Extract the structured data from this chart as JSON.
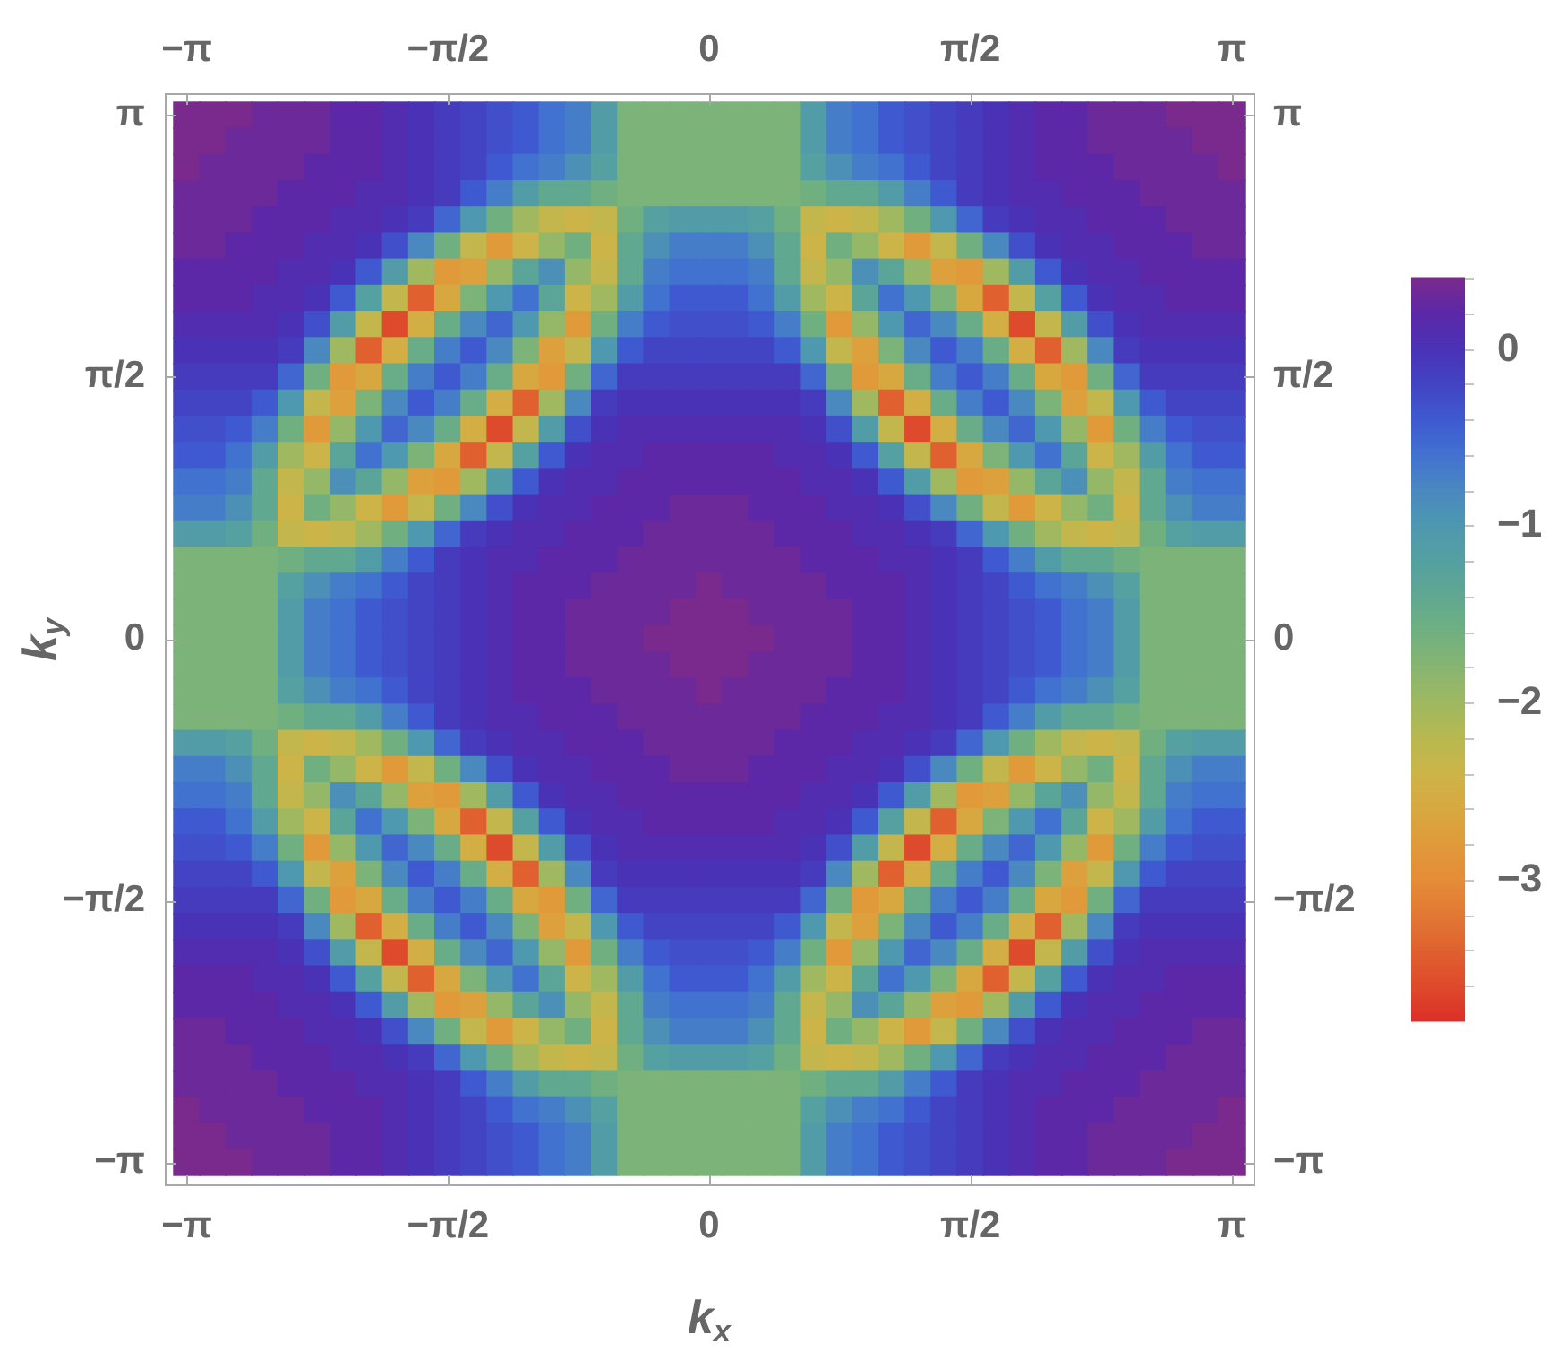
{
  "chart_data": {
    "type": "heatmap",
    "xlabel": "k$_{x}$",
    "ylabel": "k$_{y}$",
    "categories": [
      "−π",
      null,
      null,
      null,
      null,
      null,
      null,
      null,
      null,
      null,
      "−π/2",
      null,
      null,
      null,
      null,
      null,
      null,
      null,
      null,
      null,
      "0",
      null,
      null,
      null,
      null,
      null,
      null,
      null,
      null,
      null,
      "π/2",
      null,
      null,
      null,
      null,
      null,
      null,
      null,
      null,
      null,
      "π"
    ],
    "y2_categories": [
      "π",
      null,
      null,
      null,
      null,
      null,
      null,
      null,
      null,
      null,
      "π/2",
      null,
      null,
      null,
      null,
      null,
      null,
      null,
      null,
      null,
      "0",
      null,
      null,
      null,
      null,
      null,
      null,
      null,
      null,
      null,
      "−π/2",
      null,
      null,
      null,
      null,
      null,
      null,
      null,
      null,
      null,
      "−π"
    ],
    "y_categories": [
      "π",
      null,
      null,
      null,
      null,
      null,
      null,
      null,
      null,
      null,
      "π/2",
      null,
      null,
      null,
      null,
      null,
      null,
      null,
      null,
      null,
      "0",
      null,
      null,
      null,
      null,
      null,
      null,
      null,
      null,
      null,
      "−π/2",
      null,
      null,
      null,
      null,
      null,
      null,
      null,
      null,
      null,
      "−π"
    ],
    "clim": [
      -3.8,
      0.4
    ],
    "cticks": [
      {
        "value": -3.6,
        "label": null
      },
      {
        "value": -3.4,
        "label": null
      },
      {
        "value": -3.2,
        "label": null
      },
      {
        "value": -3,
        "label": "−3"
      },
      {
        "value": -2.8,
        "label": null
      },
      {
        "value": -2.6,
        "label": null
      },
      {
        "value": -2.4,
        "label": null
      },
      {
        "value": -2.2,
        "label": null
      },
      {
        "value": -2,
        "label": "−2"
      },
      {
        "value": -1.8,
        "label": null
      },
      {
        "value": -1.6,
        "label": null
      },
      {
        "value": -1.4,
        "label": null
      },
      {
        "value": -1.2,
        "label": null
      },
      {
        "value": -1,
        "label": "−1"
      },
      {
        "value": -0.8,
        "label": null
      },
      {
        "value": -0.6,
        "label": null
      },
      {
        "value": -0.4,
        "label": null
      },
      {
        "value": -0.2,
        "label": null
      },
      0,
      {
        "value": 0.2,
        "label": null
      },
      {
        "value": 0.4,
        "label": null
      }
    ],
    "colors": [
      "#dc2e28",
      "#de4a2c",
      "#e06030",
      "#e27834",
      "#e58c38",
      "#e09a3a",
      "#d8a840",
      "#ccb448",
      "#b8b850",
      "#a0b860",
      "#88b570",
      "#70b080",
      "#60a890",
      "#55a0a0",
      "#4e98b0",
      "#4a88c0",
      "#4272d0",
      "#3f5ad0",
      "#4244c4",
      "#4a32b6",
      "#5c28a8",
      "#7a2a8c"
    ],
    "cells": [
      [
        0.4,
        0.4,
        0.4,
        0.3,
        0.3,
        0.3,
        0.2,
        0.2,
        0.1,
        0,
        -0.1,
        -0.2,
        -0.3,
        -0.4,
        -0.6,
        -0.7,
        -1.1,
        -1.7,
        -1.7,
        -1.7,
        -1.7,
        -1.7,
        -1.7,
        -1.7,
        -1.1,
        -0.7,
        -0.6,
        -0.4,
        -0.3,
        -0.2,
        -0.1,
        0,
        0.1,
        0.2,
        0.2,
        0.3,
        0.3,
        0.3,
        0.4,
        0.4,
        0.4
      ],
      [
        0.4,
        0.4,
        0.3,
        0.3,
        0.3,
        0.3,
        0.2,
        0.2,
        0.1,
        0,
        -0.1,
        -0.2,
        -0.3,
        -0.4,
        -0.6,
        -0.7,
        -1.1,
        -1.7,
        -1.7,
        -1.7,
        -1.7,
        -1.7,
        -1.7,
        -1.7,
        -1.1,
        -0.7,
        -0.6,
        -0.4,
        -0.3,
        -0.2,
        -0.1,
        0,
        0.1,
        0.2,
        0.2,
        0.3,
        0.3,
        0.3,
        0.3,
        0.4,
        0.4
      ],
      [
        0.4,
        0.3,
        0.3,
        0.3,
        0.3,
        0.2,
        0.2,
        0.2,
        0.1,
        0,
        -0.1,
        -0.2,
        -0.4,
        -0.6,
        -0.7,
        -0.9,
        -1.2,
        -1.7,
        -1.7,
        -1.7,
        -1.7,
        -1.7,
        -1.7,
        -1.7,
        -1.2,
        -0.9,
        -0.7,
        -0.6,
        -0.4,
        -0.2,
        -0.1,
        0,
        0.1,
        0.2,
        0.2,
        0.2,
        0.3,
        0.3,
        0.3,
        0.3,
        0.4
      ],
      [
        0.3,
        0.3,
        0.3,
        0.3,
        0.2,
        0.2,
        0.2,
        0.1,
        0.1,
        0,
        -0.1,
        -0.4,
        -0.7,
        -1.1,
        -1.4,
        -1.4,
        -1.6,
        -1.7,
        -1.7,
        -1.7,
        -1.7,
        -1.7,
        -1.7,
        -1.7,
        -1.6,
        -1.4,
        -1.4,
        -1.1,
        -0.7,
        -0.4,
        -0.1,
        0,
        0.1,
        0.1,
        0.2,
        0.2,
        0.2,
        0.3,
        0.3,
        0.3,
        0.3
      ],
      [
        0.3,
        0.3,
        0.3,
        0.2,
        0.2,
        0.2,
        0.1,
        0.1,
        0,
        -0.1,
        -0.5,
        -1,
        -1.6,
        -2,
        -2.3,
        -2.4,
        -2.3,
        -1.6,
        -1.2,
        -1.1,
        -1.1,
        -1.1,
        -1.2,
        -1.6,
        -2.3,
        -2.4,
        -2.3,
        -2,
        -1.6,
        -1,
        -0.5,
        -0.1,
        0,
        0.1,
        0.1,
        0.2,
        0.2,
        0.2,
        0.3,
        0.3,
        0.3
      ],
      [
        0.3,
        0.3,
        0.2,
        0.2,
        0.2,
        0.1,
        0.1,
        0,
        -0.3,
        -0.8,
        -1.6,
        -2.3,
        -2.8,
        -2.4,
        -1.9,
        -1.6,
        -2.4,
        -1.4,
        -0.9,
        -0.7,
        -0.7,
        -0.7,
        -0.9,
        -1.4,
        -2.4,
        -1.6,
        -1.9,
        -2.4,
        -2.8,
        -2.3,
        -1.6,
        -0.8,
        -0.3,
        0,
        0.1,
        0.1,
        0.2,
        0.2,
        0.2,
        0.3,
        0.3
      ],
      [
        0.2,
        0.2,
        0.2,
        0.2,
        0.1,
        0.1,
        0,
        -0.4,
        -1.1,
        -2,
        -2.8,
        -2.7,
        -1.9,
        -1.3,
        -0.9,
        -1.9,
        -2.3,
        -1.4,
        -0.7,
        -0.6,
        -0.6,
        -0.6,
        -0.7,
        -1.4,
        -2.3,
        -1.9,
        -0.9,
        -1.3,
        -1.9,
        -2.7,
        -2.8,
        -2,
        -1.1,
        -0.4,
        0,
        0.1,
        0.1,
        0.2,
        0.2,
        0.2,
        0.2
      ],
      [
        0.2,
        0.2,
        0.2,
        0.1,
        0.1,
        0,
        -0.4,
        -1.2,
        -2.3,
        -3.4,
        -2.6,
        -1.7,
        -1,
        -0.6,
        -1.3,
        -2.4,
        -2,
        -1.1,
        -0.6,
        -0.4,
        -0.4,
        -0.4,
        -0.6,
        -1.1,
        -2,
        -2.4,
        -1.3,
        -0.6,
        -1,
        -1.7,
        -2.6,
        -3.4,
        -2.3,
        -1.2,
        -0.4,
        0,
        0.1,
        0.1,
        0.2,
        0.2,
        0.2
      ],
      [
        0.1,
        0.1,
        0.1,
        0.1,
        0,
        -0.3,
        -1.1,
        -2.3,
        -3.6,
        -2.5,
        -1.5,
        -0.8,
        -0.5,
        -1,
        -1.9,
        -2.8,
        -1.6,
        -0.7,
        -0.4,
        -0.3,
        -0.3,
        -0.3,
        -0.4,
        -0.7,
        -1.6,
        -2.8,
        -1.9,
        -1,
        -0.5,
        -0.8,
        -1.5,
        -2.5,
        -3.6,
        -2.3,
        -1.1,
        -0.3,
        0,
        0.1,
        0.1,
        0.1,
        0.1
      ],
      [
        0,
        0,
        0,
        0,
        -0.1,
        -0.8,
        -2,
        -3.4,
        -2.5,
        -1.5,
        -0.7,
        -0.4,
        -0.8,
        -1.7,
        -2.7,
        -2.3,
        -1,
        -0.4,
        -0.2,
        -0.2,
        -0.2,
        -0.2,
        -0.2,
        -0.4,
        -1,
        -2.3,
        -2.7,
        -1.7,
        -0.8,
        -0.4,
        -0.7,
        -1.5,
        -2.5,
        -3.4,
        -2,
        -0.8,
        -0.1,
        0,
        0,
        0,
        0
      ],
      [
        -0.1,
        -0.1,
        -0.1,
        -0.1,
        -0.5,
        -1.6,
        -2.8,
        -2.6,
        -1.5,
        -0.7,
        -0.4,
        -0.7,
        -1.5,
        -2.6,
        -2.8,
        -1.6,
        -0.5,
        -0.1,
        -0.1,
        -0.1,
        -0.1,
        -0.1,
        -0.1,
        -0.1,
        -0.5,
        -1.6,
        -2.8,
        -2.6,
        -1.5,
        -0.7,
        -0.4,
        -0.7,
        -1.5,
        -2.6,
        -2.8,
        -1.6,
        -0.5,
        -0.1,
        -0.1,
        -0.1,
        -0.1
      ],
      [
        -0.2,
        -0.2,
        -0.2,
        -0.4,
        -1,
        -2.3,
        -2.7,
        -1.7,
        -0.8,
        -0.4,
        -0.7,
        -1.5,
        -2.5,
        -3.4,
        -2,
        -0.8,
        -0.1,
        0,
        0,
        0,
        0,
        0,
        0,
        0,
        -0.1,
        -0.8,
        -2,
        -3.4,
        -2.5,
        -1.5,
        -0.7,
        -0.4,
        -0.8,
        -1.7,
        -2.7,
        -2.3,
        -1,
        -0.4,
        -0.2,
        -0.2,
        -0.2
      ],
      [
        -0.3,
        -0.3,
        -0.4,
        -0.7,
        -1.6,
        -2.8,
        -1.9,
        -1,
        -0.5,
        -0.8,
        -1.5,
        -2.5,
        -3.6,
        -2.3,
        -1.1,
        -0.3,
        0,
        0.1,
        0.1,
        0.1,
        0.1,
        0.1,
        0.1,
        0.1,
        0,
        -0.3,
        -1.1,
        -2.3,
        -3.6,
        -2.5,
        -1.5,
        -0.8,
        -0.5,
        -1,
        -1.9,
        -2.8,
        -1.6,
        -0.7,
        -0.4,
        -0.3,
        -0.3
      ],
      [
        -0.4,
        -0.4,
        -0.6,
        -1.1,
        -2,
        -2.4,
        -1.3,
        -0.6,
        -1,
        -1.7,
        -2.6,
        -3.4,
        -2.3,
        -1.2,
        -0.4,
        0,
        0.1,
        0.1,
        0.2,
        0.2,
        0.2,
        0.2,
        0.2,
        0.1,
        0.1,
        0,
        -0.4,
        -1.2,
        -2.3,
        -3.4,
        -2.6,
        -1.7,
        -1,
        -0.6,
        -1.3,
        -2.4,
        -2,
        -1.1,
        -0.6,
        -0.4,
        -0.4
      ],
      [
        -0.6,
        -0.6,
        -0.7,
        -1.4,
        -2.3,
        -1.9,
        -0.9,
        -1.3,
        -1.9,
        -2.7,
        -2.8,
        -2,
        -1.1,
        -0.4,
        0,
        0.1,
        0.1,
        0.2,
        0.2,
        0.2,
        0.2,
        0.2,
        0.2,
        0.2,
        0.1,
        0.1,
        0,
        -0.4,
        -1.1,
        -2,
        -2.8,
        -2.7,
        -1.9,
        -1.3,
        -0.9,
        -1.9,
        -2.3,
        -1.4,
        -0.7,
        -0.6,
        -0.6
      ],
      [
        -0.7,
        -0.7,
        -0.9,
        -1.4,
        -2.4,
        -1.6,
        -1.9,
        -2.4,
        -2.8,
        -2.3,
        -1.6,
        -0.8,
        -0.3,
        0,
        0.1,
        0.1,
        0.2,
        0.2,
        0.2,
        0.3,
        0.3,
        0.3,
        0.2,
        0.2,
        0.2,
        0.1,
        0.1,
        0,
        -0.3,
        -0.8,
        -1.6,
        -2.3,
        -2.8,
        -2.4,
        -1.9,
        -1.6,
        -2.4,
        -1.4,
        -0.9,
        -0.7,
        -0.7
      ],
      [
        -1.1,
        -1.1,
        -1.2,
        -1.6,
        -2.3,
        -2.4,
        -2.3,
        -2,
        -1.6,
        -1,
        -0.5,
        -0.1,
        0,
        0.1,
        0.1,
        0.2,
        0.2,
        0.2,
        0.3,
        0.3,
        0.3,
        0.3,
        0.3,
        0.2,
        0.2,
        0.2,
        0.1,
        0.1,
        0,
        -0.1,
        -0.5,
        -1,
        -1.6,
        -2,
        -2.3,
        -2.4,
        -2.3,
        -1.6,
        -1.2,
        -1.1,
        -1.1
      ],
      [
        -1.7,
        -1.7,
        -1.7,
        -1.7,
        -1.6,
        -1.4,
        -1.4,
        -1.1,
        -0.7,
        -0.4,
        -0.1,
        0,
        0.1,
        0.1,
        0.2,
        0.2,
        0.2,
        0.3,
        0.3,
        0.3,
        0.3,
        0.3,
        0.3,
        0.3,
        0.2,
        0.2,
        0.2,
        0.1,
        0.1,
        0,
        -0.1,
        -0.4,
        -0.7,
        -1.1,
        -1.4,
        -1.4,
        -1.6,
        -1.7,
        -1.7,
        -1.7,
        -1.7
      ],
      [
        -1.7,
        -1.7,
        -1.7,
        -1.7,
        -1.2,
        -0.9,
        -0.7,
        -0.6,
        -0.4,
        -0.2,
        -0.1,
        0,
        0.1,
        0.2,
        0.2,
        0.2,
        0.3,
        0.3,
        0.3,
        0.3,
        0.4,
        0.3,
        0.3,
        0.3,
        0.3,
        0.2,
        0.2,
        0.2,
        0.1,
        0,
        -0.1,
        -0.2,
        -0.4,
        -0.6,
        -0.7,
        -0.9,
        -1.2,
        -1.7,
        -1.7,
        -1.7,
        -1.7
      ],
      [
        -1.7,
        -1.7,
        -1.7,
        -1.7,
        -1.1,
        -0.7,
        -0.6,
        -0.4,
        -0.3,
        -0.2,
        -0.1,
        0,
        0.1,
        0.2,
        0.2,
        0.3,
        0.3,
        0.3,
        0.3,
        0.4,
        0.4,
        0.4,
        0.3,
        0.3,
        0.3,
        0.3,
        0.2,
        0.2,
        0.1,
        0,
        -0.1,
        -0.2,
        -0.3,
        -0.4,
        -0.6,
        -0.7,
        -1.1,
        -1.7,
        -1.7,
        -1.7,
        -1.7
      ],
      [
        -1.7,
        -1.7,
        -1.7,
        -1.7,
        -1.1,
        -0.7,
        -0.6,
        -0.4,
        -0.3,
        -0.2,
        -0.1,
        0,
        0.1,
        0.2,
        0.2,
        0.3,
        0.3,
        0.3,
        0.4,
        0.4,
        0.4,
        0.4,
        0.4,
        0.3,
        0.3,
        0.3,
        0.2,
        0.2,
        0.1,
        0,
        -0.1,
        -0.2,
        -0.3,
        -0.4,
        -0.6,
        -0.7,
        -1.1,
        -1.7,
        -1.7,
        -1.7,
        -1.7
      ],
      [
        -1.7,
        -1.7,
        -1.7,
        -1.7,
        -1.1,
        -0.7,
        -0.6,
        -0.4,
        -0.3,
        -0.2,
        -0.1,
        0,
        0.1,
        0.2,
        0.2,
        0.3,
        0.3,
        0.3,
        0.3,
        0.4,
        0.4,
        0.4,
        0.3,
        0.3,
        0.3,
        0.3,
        0.2,
        0.2,
        0.1,
        0,
        -0.1,
        -0.2,
        -0.3,
        -0.4,
        -0.6,
        -0.7,
        -1.1,
        -1.7,
        -1.7,
        -1.7,
        -1.7
      ],
      [
        -1.7,
        -1.7,
        -1.7,
        -1.7,
        -1.2,
        -0.9,
        -0.7,
        -0.6,
        -0.4,
        -0.2,
        -0.1,
        0,
        0.1,
        0.2,
        0.2,
        0.2,
        0.3,
        0.3,
        0.3,
        0.3,
        0.4,
        0.3,
        0.3,
        0.3,
        0.3,
        0.2,
        0.2,
        0.2,
        0.1,
        0,
        -0.1,
        -0.2,
        -0.4,
        -0.6,
        -0.7,
        -0.9,
        -1.2,
        -1.7,
        -1.7,
        -1.7,
        -1.7
      ],
      [
        -1.7,
        -1.7,
        -1.7,
        -1.7,
        -1.6,
        -1.4,
        -1.4,
        -1.1,
        -0.7,
        -0.4,
        -0.1,
        0,
        0.1,
        0.1,
        0.2,
        0.2,
        0.2,
        0.3,
        0.3,
        0.3,
        0.3,
        0.3,
        0.3,
        0.3,
        0.2,
        0.2,
        0.2,
        0.1,
        0.1,
        0,
        -0.1,
        -0.4,
        -0.7,
        -1.1,
        -1.4,
        -1.4,
        -1.6,
        -1.7,
        -1.7,
        -1.7,
        -1.7
      ],
      [
        -1.1,
        -1.1,
        -1.2,
        -1.6,
        -2.3,
        -2.4,
        -2.3,
        -2,
        -1.6,
        -1,
        -0.5,
        -0.1,
        0,
        0.1,
        0.1,
        0.2,
        0.2,
        0.2,
        0.3,
        0.3,
        0.3,
        0.3,
        0.3,
        0.2,
        0.2,
        0.2,
        0.1,
        0.1,
        0,
        -0.1,
        -0.5,
        -1,
        -1.6,
        -2,
        -2.3,
        -2.4,
        -2.3,
        -1.6,
        -1.2,
        -1.1,
        -1.1
      ],
      [
        -0.7,
        -0.7,
        -0.9,
        -1.4,
        -2.4,
        -1.6,
        -1.9,
        -2.4,
        -2.8,
        -2.3,
        -1.6,
        -0.8,
        -0.3,
        0,
        0.1,
        0.1,
        0.2,
        0.2,
        0.2,
        0.3,
        0.3,
        0.3,
        0.2,
        0.2,
        0.2,
        0.1,
        0.1,
        0,
        -0.3,
        -0.8,
        -1.6,
        -2.3,
        -2.8,
        -2.4,
        -1.9,
        -1.6,
        -2.4,
        -1.4,
        -0.9,
        -0.7,
        -0.7
      ],
      [
        -0.6,
        -0.6,
        -0.7,
        -1.4,
        -2.3,
        -1.9,
        -0.9,
        -1.3,
        -1.9,
        -2.7,
        -2.8,
        -2,
        -1.1,
        -0.4,
        0,
        0.1,
        0.1,
        0.2,
        0.2,
        0.2,
        0.2,
        0.2,
        0.2,
        0.2,
        0.1,
        0.1,
        0,
        -0.4,
        -1.1,
        -2,
        -2.8,
        -2.7,
        -1.9,
        -1.3,
        -0.9,
        -1.9,
        -2.3,
        -1.4,
        -0.7,
        -0.6,
        -0.6
      ],
      [
        -0.4,
        -0.4,
        -0.6,
        -1.1,
        -2,
        -2.4,
        -1.3,
        -0.6,
        -1,
        -1.7,
        -2.6,
        -3.4,
        -2.3,
        -1.2,
        -0.4,
        0,
        0.1,
        0.1,
        0.2,
        0.2,
        0.2,
        0.2,
        0.2,
        0.1,
        0.1,
        0,
        -0.4,
        -1.2,
        -2.3,
        -3.4,
        -2.6,
        -1.7,
        -1,
        -0.6,
        -1.3,
        -2.4,
        -2,
        -1.1,
        -0.6,
        -0.4,
        -0.4
      ],
      [
        -0.3,
        -0.3,
        -0.4,
        -0.7,
        -1.6,
        -2.8,
        -1.9,
        -1,
        -0.5,
        -0.8,
        -1.5,
        -2.5,
        -3.6,
        -2.3,
        -1.1,
        -0.3,
        0,
        0.1,
        0.1,
        0.1,
        0.1,
        0.1,
        0.1,
        0.1,
        0,
        -0.3,
        -1.1,
        -2.3,
        -3.6,
        -2.5,
        -1.5,
        -0.8,
        -0.5,
        -1,
        -1.9,
        -2.8,
        -1.6,
        -0.7,
        -0.4,
        -0.3,
        -0.3
      ],
      [
        -0.2,
        -0.2,
        -0.2,
        -0.4,
        -1,
        -2.3,
        -2.7,
        -1.7,
        -0.8,
        -0.4,
        -0.7,
        -1.5,
        -2.5,
        -3.4,
        -2,
        -0.8,
        -0.1,
        0,
        0,
        0,
        0,
        0,
        0,
        0,
        -0.1,
        -0.8,
        -2,
        -3.4,
        -2.5,
        -1.5,
        -0.7,
        -0.4,
        -0.8,
        -1.7,
        -2.7,
        -2.3,
        -1,
        -0.4,
        -0.2,
        -0.2,
        -0.2
      ],
      [
        -0.1,
        -0.1,
        -0.1,
        -0.1,
        -0.5,
        -1.6,
        -2.8,
        -2.6,
        -1.5,
        -0.7,
        -0.4,
        -0.7,
        -1.5,
        -2.6,
        -2.8,
        -1.6,
        -0.5,
        -0.1,
        -0.1,
        -0.1,
        -0.1,
        -0.1,
        -0.1,
        -0.1,
        -0.5,
        -1.6,
        -2.8,
        -2.6,
        -1.5,
        -0.7,
        -0.4,
        -0.7,
        -1.5,
        -2.6,
        -2.8,
        -1.6,
        -0.5,
        -0.1,
        -0.1,
        -0.1,
        -0.1
      ],
      [
        0,
        0,
        0,
        0,
        -0.1,
        -0.8,
        -2,
        -3.4,
        -2.5,
        -1.5,
        -0.7,
        -0.4,
        -0.8,
        -1.7,
        -2.7,
        -2.3,
        -1,
        -0.4,
        -0.2,
        -0.2,
        -0.2,
        -0.2,
        -0.2,
        -0.4,
        -1,
        -2.3,
        -2.7,
        -1.7,
        -0.8,
        -0.4,
        -0.7,
        -1.5,
        -2.5,
        -3.4,
        -2,
        -0.8,
        -0.1,
        0,
        0,
        0,
        0
      ],
      [
        0.1,
        0.1,
        0.1,
        0.1,
        0,
        -0.3,
        -1.1,
        -2.3,
        -3.6,
        -2.5,
        -1.5,
        -0.8,
        -0.5,
        -1,
        -1.9,
        -2.8,
        -1.6,
        -0.7,
        -0.4,
        -0.3,
        -0.3,
        -0.3,
        -0.4,
        -0.7,
        -1.6,
        -2.8,
        -1.9,
        -1,
        -0.5,
        -0.8,
        -1.5,
        -2.5,
        -3.6,
        -2.3,
        -1.1,
        -0.3,
        0,
        0.1,
        0.1,
        0.1,
        0.1
      ],
      [
        0.2,
        0.2,
        0.2,
        0.1,
        0.1,
        0,
        -0.4,
        -1.2,
        -2.3,
        -3.4,
        -2.6,
        -1.7,
        -1,
        -0.6,
        -1.3,
        -2.4,
        -2,
        -1.1,
        -0.6,
        -0.4,
        -0.4,
        -0.4,
        -0.6,
        -1.1,
        -2,
        -2.4,
        -1.3,
        -0.6,
        -1,
        -1.7,
        -2.6,
        -3.4,
        -2.3,
        -1.2,
        -0.4,
        0,
        0.1,
        0.1,
        0.2,
        0.2,
        0.2
      ],
      [
        0.2,
        0.2,
        0.2,
        0.2,
        0.1,
        0.1,
        0,
        -0.4,
        -1.1,
        -2,
        -2.8,
        -2.7,
        -1.9,
        -1.3,
        -0.9,
        -1.9,
        -2.3,
        -1.4,
        -0.7,
        -0.6,
        -0.6,
        -0.6,
        -0.7,
        -1.4,
        -2.3,
        -1.9,
        -0.9,
        -1.3,
        -1.9,
        -2.7,
        -2.8,
        -2,
        -1.1,
        -0.4,
        0,
        0.1,
        0.1,
        0.2,
        0.2,
        0.2,
        0.2
      ],
      [
        0.3,
        0.3,
        0.2,
        0.2,
        0.2,
        0.1,
        0.1,
        0,
        -0.3,
        -0.8,
        -1.6,
        -2.3,
        -2.8,
        -2.4,
        -1.9,
        -1.6,
        -2.4,
        -1.4,
        -0.9,
        -0.7,
        -0.7,
        -0.7,
        -0.9,
        -1.4,
        -2.4,
        -1.6,
        -1.9,
        -2.4,
        -2.8,
        -2.3,
        -1.6,
        -0.8,
        -0.3,
        0,
        0.1,
        0.1,
        0.2,
        0.2,
        0.2,
        0.3,
        0.3
      ],
      [
        0.3,
        0.3,
        0.3,
        0.2,
        0.2,
        0.2,
        0.1,
        0.1,
        0,
        -0.1,
        -0.5,
        -1,
        -1.6,
        -2,
        -2.3,
        -2.4,
        -2.3,
        -1.6,
        -1.2,
        -1.1,
        -1.1,
        -1.1,
        -1.2,
        -1.6,
        -2.3,
        -2.4,
        -2.3,
        -2,
        -1.6,
        -1,
        -0.5,
        -0.1,
        0,
        0.1,
        0.1,
        0.2,
        0.2,
        0.2,
        0.3,
        0.3,
        0.3
      ],
      [
        0.3,
        0.3,
        0.3,
        0.3,
        0.2,
        0.2,
        0.2,
        0.1,
        0.1,
        0,
        -0.1,
        -0.4,
        -0.7,
        -1.1,
        -1.4,
        -1.4,
        -1.6,
        -1.7,
        -1.7,
        -1.7,
        -1.7,
        -1.7,
        -1.7,
        -1.7,
        -1.6,
        -1.4,
        -1.4,
        -1.1,
        -0.7,
        -0.4,
        -0.1,
        0,
        0.1,
        0.1,
        0.2,
        0.2,
        0.2,
        0.3,
        0.3,
        0.3,
        0.3
      ],
      [
        0.4,
        0.3,
        0.3,
        0.3,
        0.3,
        0.2,
        0.2,
        0.2,
        0.1,
        0,
        -0.1,
        -0.2,
        -0.4,
        -0.6,
        -0.7,
        -0.9,
        -1.2,
        -1.7,
        -1.7,
        -1.7,
        -1.7,
        -1.7,
        -1.7,
        -1.7,
        -1.2,
        -0.9,
        -0.7,
        -0.6,
        -0.4,
        -0.2,
        -0.1,
        0,
        0.1,
        0.2,
        0.2,
        0.2,
        0.3,
        0.3,
        0.3,
        0.3,
        0.4
      ],
      [
        0.4,
        0.4,
        0.3,
        0.3,
        0.3,
        0.3,
        0.2,
        0.2,
        0.1,
        0,
        -0.1,
        -0.2,
        -0.3,
        -0.4,
        -0.6,
        -0.7,
        -1.1,
        -1.7,
        -1.7,
        -1.7,
        -1.7,
        -1.7,
        -1.7,
        -1.7,
        -1.1,
        -0.7,
        -0.6,
        -0.4,
        -0.3,
        -0.2,
        -0.1,
        0,
        0.1,
        0.2,
        0.2,
        0.3,
        0.3,
        0.3,
        0.3,
        0.4,
        0.4
      ],
      [
        0.4,
        0.4,
        0.4,
        0.3,
        0.3,
        0.3,
        0.2,
        0.2,
        0.1,
        0,
        -0.1,
        -0.2,
        -0.3,
        -0.4,
        -0.6,
        -0.7,
        -1.1,
        -1.7,
        -1.7,
        -1.7,
        -1.7,
        -1.7,
        -1.7,
        -1.7,
        -1.1,
        -0.7,
        -0.6,
        -0.4,
        -0.3,
        -0.2,
        -0.1,
        0,
        0.1,
        0.2,
        0.2,
        0.3,
        0.3,
        0.3,
        0.4,
        0.4,
        0.4
      ]
    ]
  }
}
